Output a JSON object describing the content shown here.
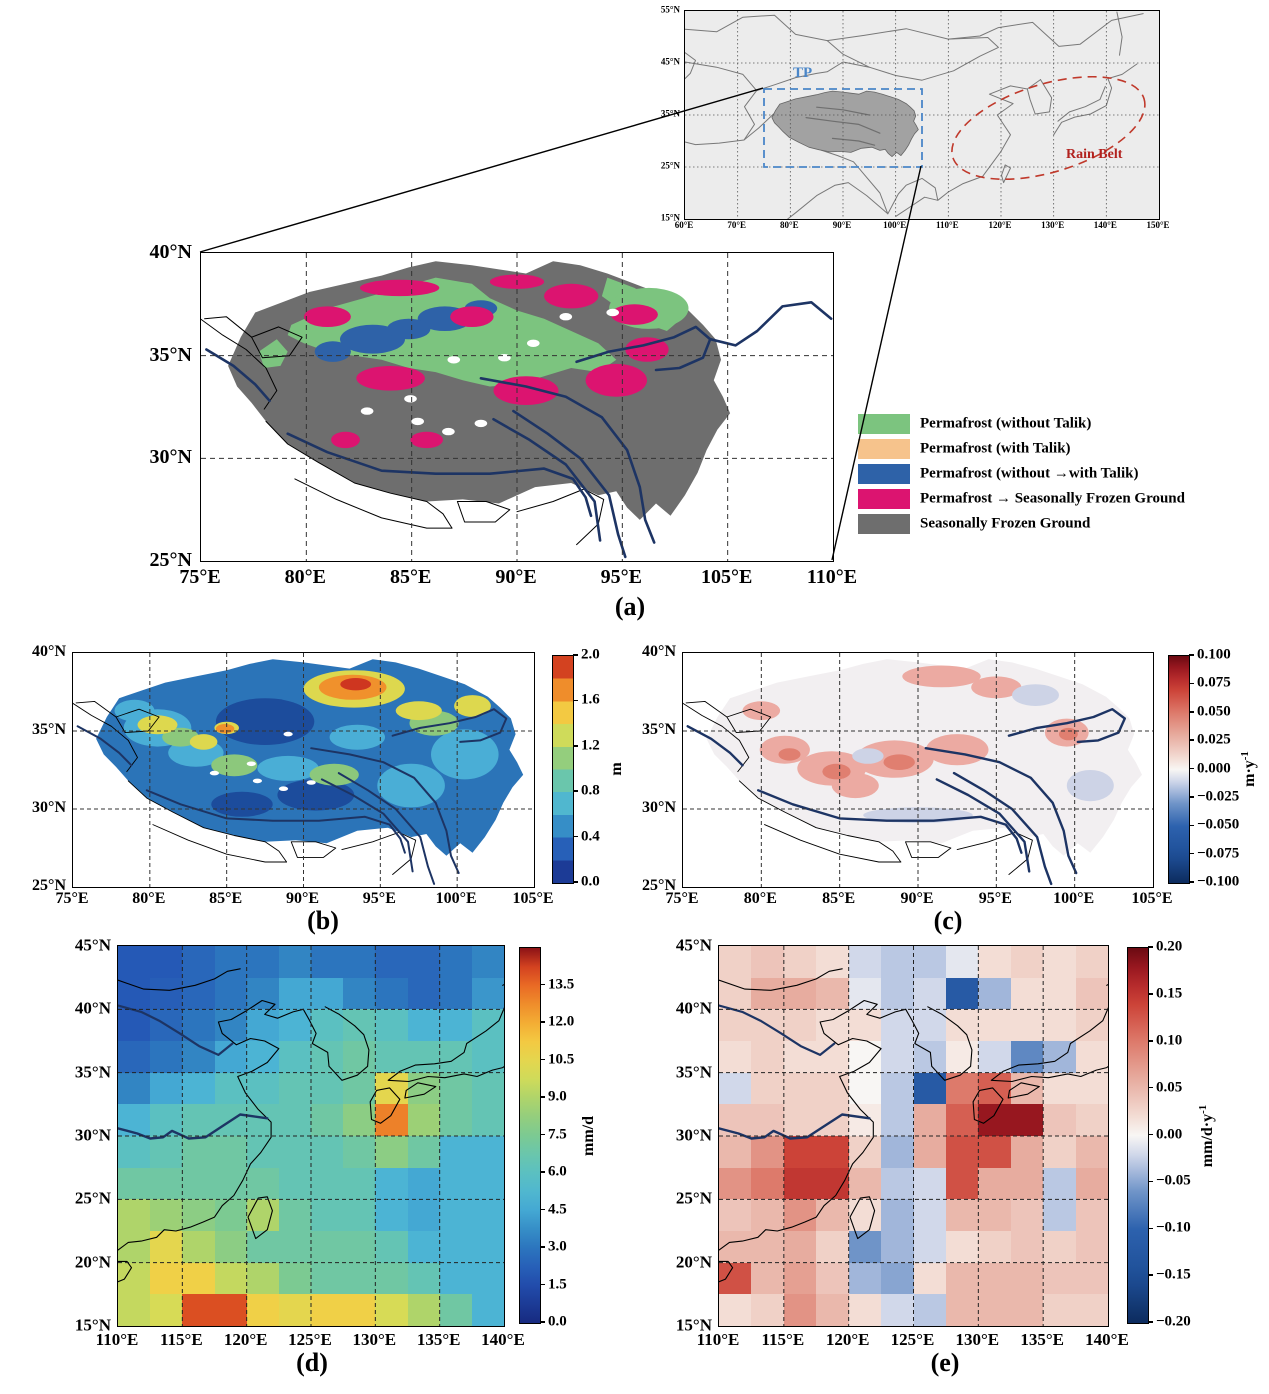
{
  "colors": {
    "permafrost_green": "#7cc47f",
    "talik_orange": "#f6c38c",
    "talik_blue": "#2e62a8",
    "transition_magenta": "#dc1470",
    "sfg_gray": "#6e6e6e",
    "river_navy": "#1d3464",
    "tp_box_blue": "#4a86c8",
    "rain_belt_red": "#b2221e"
  },
  "overview": {
    "x_ticks": [
      "60°E",
      "70°E",
      "80°E",
      "90°E",
      "100°E",
      "110°E",
      "120°E",
      "130°E",
      "140°E",
      "150°E"
    ],
    "y_ticks": [
      "55°N",
      "45°N",
      "35°N",
      "25°N",
      "15°N"
    ],
    "tp_label": "TP",
    "rain_belt_label": "Rain Belt"
  },
  "panel_a": {
    "caption": "(a)",
    "x_ticks": [
      "75°E",
      "80°E",
      "85°E",
      "90°E",
      "95°E",
      "105°E",
      "110°E"
    ],
    "y_ticks": [
      "40°N",
      "35°N",
      "30°N",
      "25°N"
    ],
    "legend": [
      {
        "label": "Permafrost (without Talik)",
        "color": "#7cc47f"
      },
      {
        "label": "Permafrost (with Talik)",
        "color": "#f6c38c"
      },
      {
        "label": "Permafrost (without →with Talik)",
        "color": "#2e62a8"
      },
      {
        "label": "Permafrost → Seasonally Frozen Ground",
        "color": "#dc1470"
      },
      {
        "label": "Seasonally Frozen Ground",
        "color": "#6e6e6e"
      }
    ]
  },
  "panel_b": {
    "caption": "(b)",
    "x_ticks": [
      "75°E",
      "80°E",
      "85°E",
      "90°E",
      "95°E",
      "100°E",
      "105°E"
    ],
    "y_ticks": [
      "40°N",
      "35°N",
      "30°N",
      "25°N"
    ],
    "colorbar": {
      "ticks": [
        "2.0",
        "1.6",
        "1.2",
        "0.8",
        "0.4",
        "0.0"
      ],
      "unit_base": "m",
      "unit_exp": "",
      "vmin": 0,
      "vmax": 2
    }
  },
  "panel_c": {
    "caption": "(c)",
    "x_ticks": [
      "75°E",
      "80°E",
      "85°E",
      "90°E",
      "95°E",
      "100°E",
      "105°E"
    ],
    "y_ticks": [
      "40°N",
      "35°N",
      "30°N",
      "25°N"
    ],
    "colorbar": {
      "ticks": [
        "0.100",
        "0.075",
        "0.050",
        "0.025",
        "0.000",
        "−0.025",
        "−0.050",
        "−0.075",
        "−0.100"
      ],
      "unit_base": "m·y",
      "unit_exp": "-1",
      "vmin": -0.1,
      "vmax": 0.1
    }
  },
  "panel_d": {
    "caption": "(d)",
    "x_ticks": [
      "110°E",
      "115°E",
      "120°E",
      "125°E",
      "130°E",
      "135°E",
      "140°E"
    ],
    "y_ticks": [
      "45°N",
      "40°N",
      "35°N",
      "30°N",
      "25°N",
      "20°N",
      "15°N"
    ],
    "colorbar": {
      "ticks": [
        "13.5",
        "12.0",
        "10.5",
        "9.0",
        "7.5",
        "6.0",
        "4.5",
        "3.0",
        "1.5",
        "0.0"
      ],
      "unit_base": "mm/d",
      "unit_exp": "",
      "vmin": 0,
      "vmax": 15
    }
  },
  "panel_e": {
    "caption": "(e)",
    "x_ticks": [
      "110°E",
      "115°E",
      "120°E",
      "125°E",
      "130°E",
      "135°E",
      "140°E"
    ],
    "y_ticks": [
      "45°N",
      "40°N",
      "35°N",
      "30°N",
      "25°N",
      "20°N",
      "15°N"
    ],
    "colorbar": {
      "ticks": [
        "0.20",
        "0.15",
        "0.10",
        "0.05",
        "0.00",
        "−0.05",
        "−0.10",
        "−0.15",
        "−0.20"
      ],
      "unit_base": "mm/d·y",
      "unit_exp": "-1",
      "vmin": -0.2,
      "vmax": 0.2
    }
  },
  "chart_data": [
    {
      "type": "map",
      "panel": "a",
      "legend_classes": [
        "Permafrost (without Talik)",
        "Permafrost (with Talik)",
        "Permafrost (without →with Talik)",
        "Permafrost → Seasonally Frozen Ground",
        "Seasonally Frozen Ground"
      ],
      "x_range_deg": [
        75,
        110
      ],
      "y_range_deg": [
        25,
        40
      ]
    },
    {
      "type": "map",
      "panel": "b",
      "unit": "m",
      "vmin": 0,
      "vmax": 2,
      "colormap": "jet",
      "x_range_deg": [
        75,
        105
      ],
      "y_range_deg": [
        25,
        40
      ]
    },
    {
      "type": "map",
      "panel": "c",
      "unit": "m·y⁻¹",
      "vmin": -0.1,
      "vmax": 0.1,
      "colormap": "RdBu reversed (red=positive)",
      "x_range_deg": [
        75,
        105
      ],
      "y_range_deg": [
        25,
        40
      ]
    },
    {
      "type": "heatmap",
      "panel": "d",
      "unit": "mm/d",
      "colormap": "jet",
      "vmin": 0,
      "vmax": 15,
      "x_range_deg": [
        110,
        140
      ],
      "y_range_deg": [
        15,
        45
      ],
      "cell_size_deg": 2.5,
      "values_rows_north_to_south": [
        [
          2.0,
          2.0,
          2.5,
          3.0,
          3.0,
          3.5,
          3.0,
          3.0,
          2.5,
          2.5,
          3.0,
          3.5
        ],
        [
          2.0,
          2.2,
          2.5,
          3.0,
          3.5,
          4.5,
          4.5,
          3.5,
          3.0,
          2.5,
          3.0,
          4.0
        ],
        [
          2.0,
          2.5,
          3.0,
          3.5,
          4.5,
          5.0,
          6.0,
          6.5,
          6.0,
          5.0,
          5.0,
          6.0
        ],
        [
          2.5,
          3.0,
          3.5,
          4.5,
          5.0,
          6.0,
          6.5,
          7.0,
          6.5,
          6.5,
          6.5,
          6.0
        ],
        [
          3.5,
          4.5,
          5.0,
          6.0,
          6.0,
          6.5,
          6.5,
          7.0,
          10.5,
          8.0,
          7.0,
          6.5
        ],
        [
          5.0,
          6.0,
          6.5,
          6.5,
          6.5,
          6.5,
          7.0,
          8.0,
          13.0,
          8.5,
          7.0,
          6.5
        ],
        [
          6.0,
          6.5,
          7.0,
          7.0,
          6.5,
          6.5,
          6.5,
          7.0,
          8.0,
          7.0,
          5.0,
          5.0
        ],
        [
          7.0,
          7.0,
          7.0,
          7.0,
          7.0,
          6.5,
          6.5,
          6.5,
          5.0,
          4.5,
          5.0,
          5.0
        ],
        [
          9.0,
          8.5,
          8.0,
          7.5,
          9.0,
          7.0,
          6.5,
          6.5,
          5.0,
          4.5,
          5.0,
          5.0
        ],
        [
          9.0,
          10.5,
          9.0,
          8.0,
          7.0,
          7.0,
          7.0,
          7.0,
          6.5,
          5.0,
          5.0,
          5.0
        ],
        [
          9.5,
          11.0,
          11.0,
          9.5,
          9.0,
          7.5,
          7.0,
          7.0,
          7.0,
          6.5,
          5.0,
          5.0
        ],
        [
          9.5,
          10.0,
          14.0,
          14.0,
          11.0,
          10.5,
          11.0,
          11.0,
          10.0,
          9.0,
          7.0,
          5.0
        ]
      ]
    },
    {
      "type": "heatmap",
      "panel": "e",
      "unit": "mm/d·y⁻¹",
      "colormap": "RdBu reversed (red=positive)",
      "vmin": -0.2,
      "vmax": 0.2,
      "x_range_deg": [
        110,
        140
      ],
      "y_range_deg": [
        15,
        45
      ],
      "cell_size_deg": 2.5,
      "values_rows_north_to_south": [
        [
          0.03,
          0.04,
          0.03,
          0.02,
          -0.02,
          -0.03,
          -0.03,
          -0.01,
          0.02,
          0.03,
          0.02,
          0.03
        ],
        [
          0.03,
          0.06,
          0.06,
          0.05,
          -0.01,
          -0.03,
          -0.02,
          -0.12,
          -0.04,
          0.02,
          0.02,
          0.04
        ],
        [
          0.03,
          0.03,
          0.03,
          0.02,
          0.02,
          -0.02,
          -0.02,
          0.02,
          0.02,
          0.02,
          0.02,
          0.03
        ],
        [
          0.02,
          0.03,
          0.02,
          0.02,
          0.0,
          -0.02,
          -0.03,
          0.01,
          -0.02,
          -0.07,
          -0.04,
          0.02
        ],
        [
          -0.02,
          0.03,
          0.03,
          0.03,
          0.0,
          -0.03,
          -0.12,
          0.1,
          0.12,
          0.05,
          0.02,
          0.02
        ],
        [
          0.04,
          0.04,
          0.03,
          0.03,
          0.01,
          -0.03,
          0.06,
          0.12,
          0.18,
          0.18,
          0.04,
          0.03
        ],
        [
          0.05,
          0.08,
          0.14,
          0.14,
          0.03,
          -0.04,
          0.06,
          0.13,
          0.13,
          0.06,
          0.03,
          0.05
        ],
        [
          0.08,
          0.1,
          0.15,
          0.15,
          0.05,
          -0.03,
          -0.02,
          0.13,
          0.06,
          0.06,
          -0.03,
          0.06
        ],
        [
          0.04,
          0.05,
          0.08,
          0.05,
          0.02,
          -0.04,
          -0.02,
          0.05,
          0.05,
          0.04,
          -0.03,
          0.04
        ],
        [
          0.05,
          0.05,
          0.06,
          0.03,
          -0.06,
          -0.04,
          -0.02,
          0.02,
          0.03,
          0.04,
          0.03,
          0.04
        ],
        [
          0.13,
          0.05,
          0.07,
          0.04,
          -0.04,
          -0.05,
          0.02,
          0.05,
          0.05,
          0.05,
          0.04,
          0.04
        ],
        [
          0.02,
          0.03,
          0.08,
          0.05,
          0.02,
          -0.02,
          -0.03,
          0.05,
          0.05,
          0.05,
          0.03,
          0.03
        ]
      ]
    }
  ]
}
